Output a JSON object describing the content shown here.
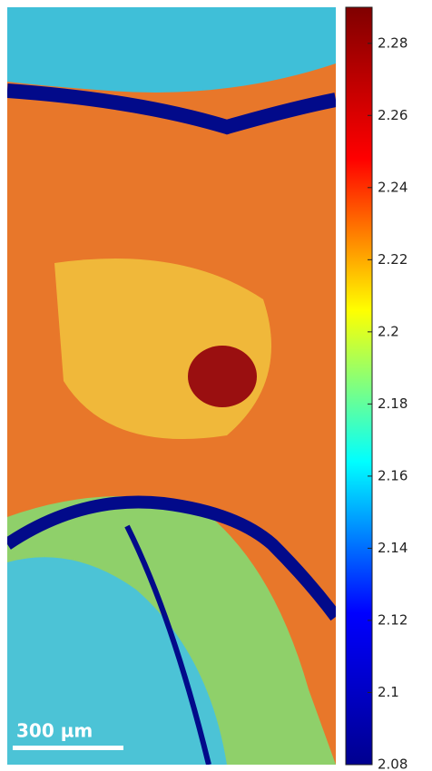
{
  "chart_data": {
    "type": "colorbar",
    "scale_bar": "300 µm",
    "ylim": [
      2.08,
      2.29
    ],
    "yticks": [
      2.08,
      2.1,
      2.12,
      2.14,
      2.16,
      2.18,
      2.2,
      2.22,
      2.24,
      2.26,
      2.28
    ],
    "colormap": [
      "#00008f",
      "#0000ff",
      "#00ffff",
      "#ffff00",
      "#ff0000",
      "#800000"
    ]
  }
}
